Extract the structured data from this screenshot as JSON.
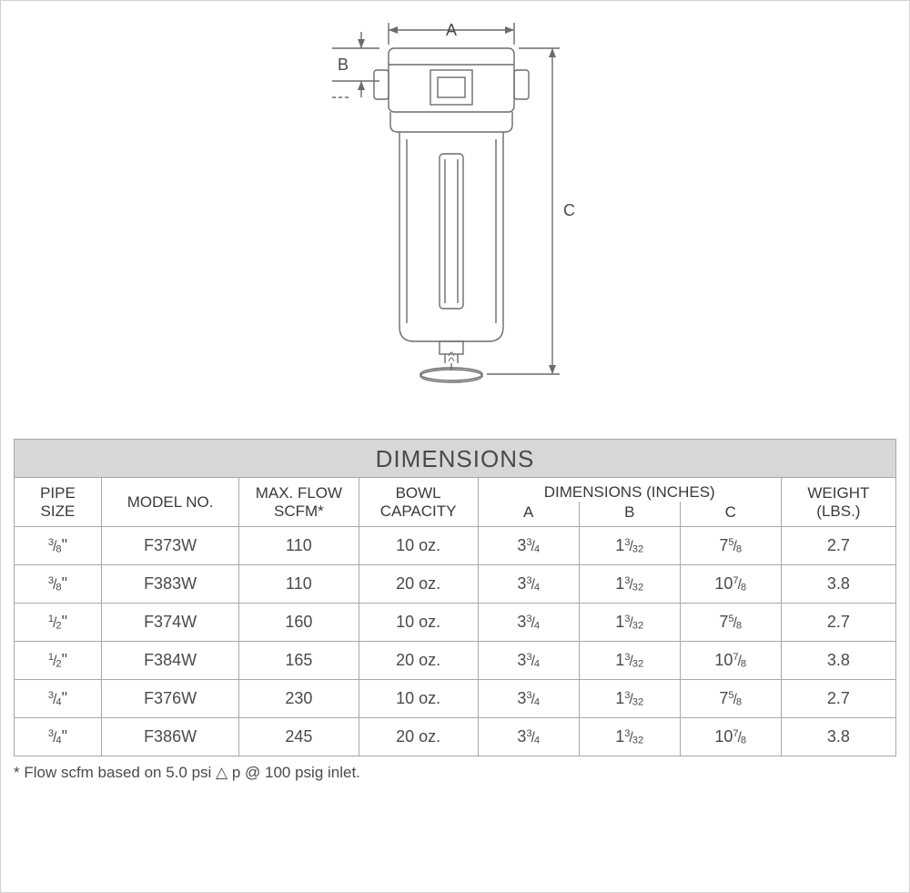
{
  "diagram": {
    "labels": {
      "A": "A",
      "B": "B",
      "C": "C"
    },
    "stroke": "#6b6b6b",
    "stroke_width": 1.4,
    "font": "Arial",
    "label_fontsize": 18
  },
  "table": {
    "title": "DIMENSIONS",
    "title_bg": "#d6d7d8",
    "border_color": "#a8a8a8",
    "text_color": "#4a4a4a",
    "col_widths_pct": [
      9.5,
      15,
      13,
      13,
      11,
      11,
      11,
      12.5
    ],
    "columns": {
      "pipe_size": "PIPE\nSIZE",
      "model_no": "MODEL NO.",
      "max_flow": "MAX. FLOW\nSCFM*",
      "bowl": "BOWL\nCAPACITY",
      "dims_group": "DIMENSIONS (INCHES)",
      "dim_a": "A",
      "dim_b": "B",
      "dim_c": "C",
      "weight": "WEIGHT\n(LBS.)"
    },
    "rows": [
      {
        "pipe": {
          "whole": "",
          "num": "3",
          "den": "8",
          "suffix": "\""
        },
        "model": "F373W",
        "flow": "110",
        "bowl": "10 oz.",
        "A": {
          "whole": "3",
          "num": "3",
          "den": "4"
        },
        "B": {
          "whole": "1",
          "num": "3",
          "den": "32"
        },
        "C": {
          "whole": "7",
          "num": "5",
          "den": "8"
        },
        "wt": "2.7"
      },
      {
        "pipe": {
          "whole": "",
          "num": "3",
          "den": "8",
          "suffix": "\""
        },
        "model": "F383W",
        "flow": "110",
        "bowl": "20 oz.",
        "A": {
          "whole": "3",
          "num": "3",
          "den": "4"
        },
        "B": {
          "whole": "1",
          "num": "3",
          "den": "32"
        },
        "C": {
          "whole": "10",
          "num": "7",
          "den": "8"
        },
        "wt": "3.8"
      },
      {
        "pipe": {
          "whole": "",
          "num": "1",
          "den": "2",
          "suffix": "\""
        },
        "model": "F374W",
        "flow": "160",
        "bowl": "10 oz.",
        "A": {
          "whole": "3",
          "num": "3",
          "den": "4"
        },
        "B": {
          "whole": "1",
          "num": "3",
          "den": "32"
        },
        "C": {
          "whole": "7",
          "num": "5",
          "den": "8"
        },
        "wt": "2.7"
      },
      {
        "pipe": {
          "whole": "",
          "num": "1",
          "den": "2",
          "suffix": "\""
        },
        "model": "F384W",
        "flow": "165",
        "bowl": "20 oz.",
        "A": {
          "whole": "3",
          "num": "3",
          "den": "4"
        },
        "B": {
          "whole": "1",
          "num": "3",
          "den": "32"
        },
        "C": {
          "whole": "10",
          "num": "7",
          "den": "8"
        },
        "wt": "3.8"
      },
      {
        "pipe": {
          "whole": "",
          "num": "3",
          "den": "4",
          "suffix": "\""
        },
        "model": "F376W",
        "flow": "230",
        "bowl": "10 oz.",
        "A": {
          "whole": "3",
          "num": "3",
          "den": "4"
        },
        "B": {
          "whole": "1",
          "num": "3",
          "den": "32"
        },
        "C": {
          "whole": "7",
          "num": "5",
          "den": "8"
        },
        "wt": "2.7"
      },
      {
        "pipe": {
          "whole": "",
          "num": "3",
          "den": "4",
          "suffix": "\""
        },
        "model": "F386W",
        "flow": "245",
        "bowl": "20 oz.",
        "A": {
          "whole": "3",
          "num": "3",
          "den": "4"
        },
        "B": {
          "whole": "1",
          "num": "3",
          "den": "32"
        },
        "C": {
          "whole": "10",
          "num": "7",
          "den": "8"
        },
        "wt": "3.8"
      }
    ],
    "footnote": "* Flow scfm based on 5.0 psi △ p @ 100 psig inlet."
  }
}
